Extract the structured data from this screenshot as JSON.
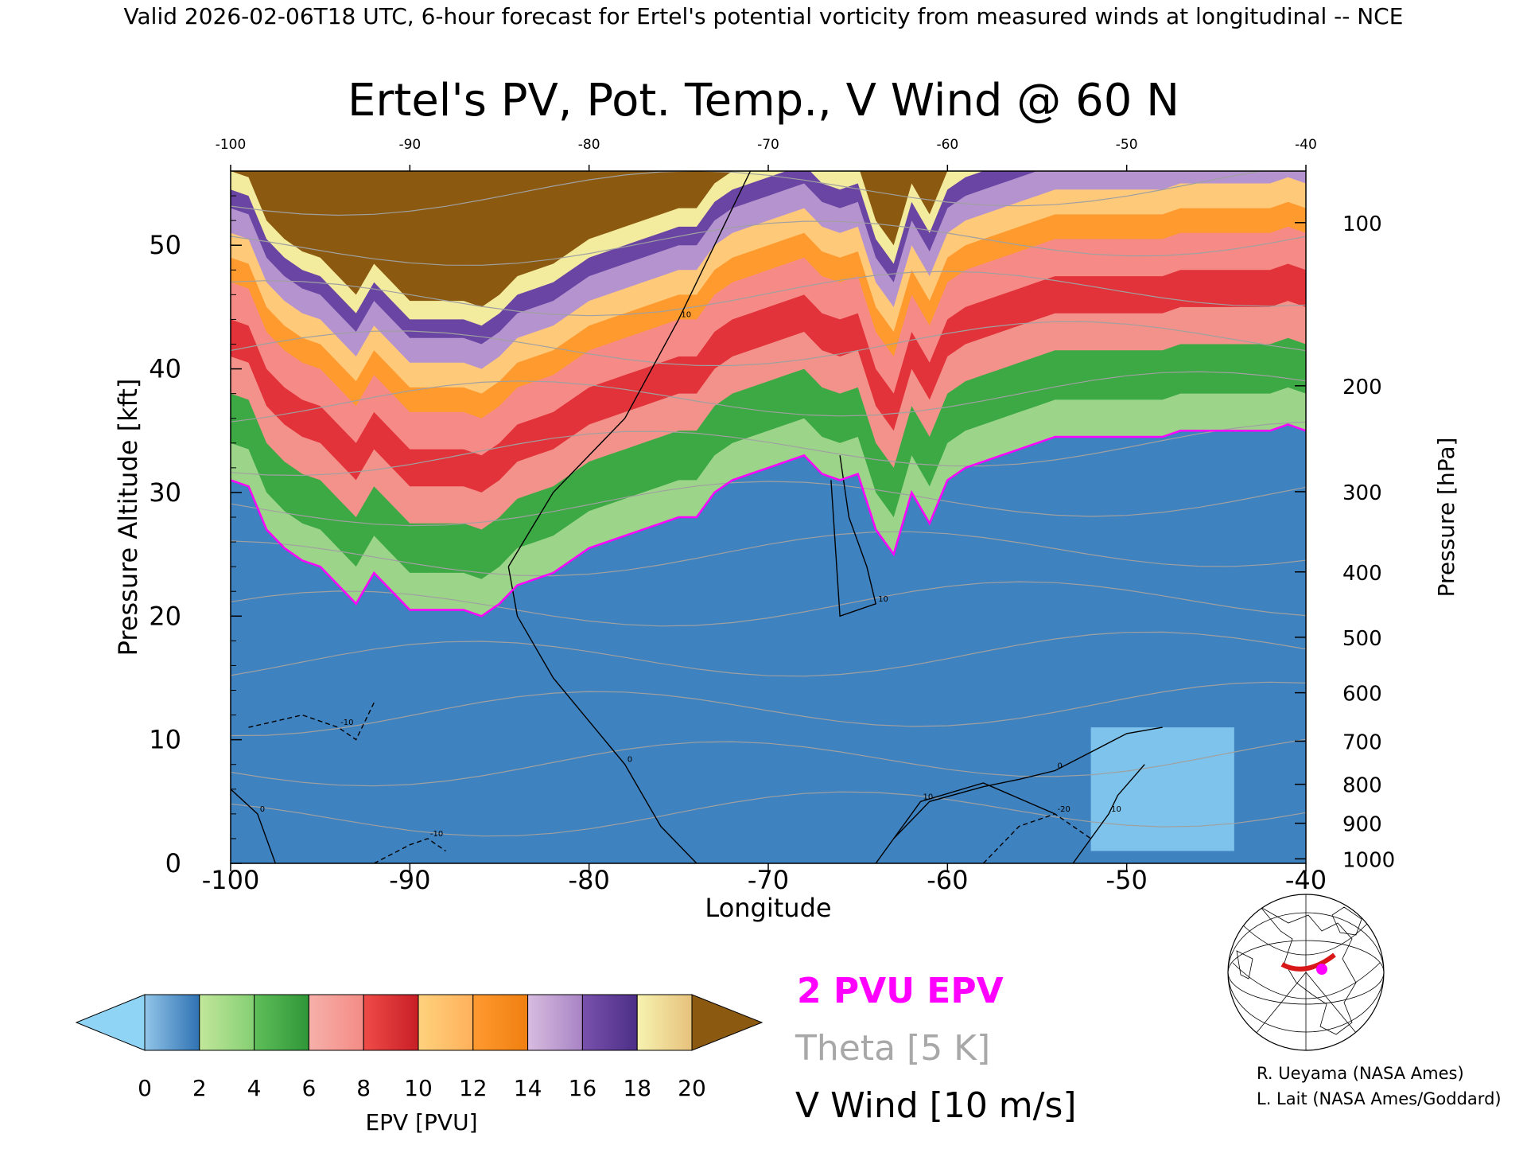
{
  "header": "Valid 2026-02-06T18 UTC, 6-hour forecast for Ertel's potential vorticity from measured winds at longitudinal -- NCE",
  "chart_data": {
    "type": "heatmap",
    "title": "Ertel's PV, Pot. Temp., V Wind @ 60 N",
    "xlabel": "Longitude",
    "ylabel": "Pressure Altitude [kft]",
    "y2label": "Pressure [hPa]",
    "xlim": [
      -100,
      -40
    ],
    "ylim": [
      0,
      56
    ],
    "x_ticks": [
      -100,
      -90,
      -80,
      -70,
      -60,
      -50,
      -40
    ],
    "y_ticks": [
      0,
      10,
      20,
      30,
      40,
      50
    ],
    "pressure_ticks": [
      100,
      200,
      300,
      400,
      500,
      600,
      700,
      800,
      900,
      1000
    ],
    "grid": false,
    "field": "EPV [PVU]",
    "tropopause_2pvu": {
      "x": [
        -100,
        -99,
        -98,
        -97,
        -96,
        -95,
        -94,
        -93,
        -92,
        -91,
        -90,
        -89,
        -88,
        -87,
        -86,
        -85,
        -84,
        -83,
        -82,
        -81,
        -80,
        -79,
        -78,
        -77,
        -76,
        -75,
        -74,
        -73,
        -72,
        -71,
        -70,
        -69,
        -68,
        -67,
        -66,
        -65,
        -64,
        -63,
        -62,
        -61,
        -60,
        -59,
        -58,
        -57,
        -56,
        -55,
        -54,
        -53,
        -52,
        -51,
        -50,
        -49,
        -48,
        -47,
        -46,
        -45,
        -44,
        -43,
        -42,
        -41,
        -40
      ],
      "y": [
        31,
        30.5,
        27,
        25.5,
        24.5,
        24,
        22.5,
        21,
        23.5,
        22,
        20.5,
        20.5,
        20.5,
        20.5,
        20,
        21,
        22.5,
        23,
        23.5,
        24.5,
        25.5,
        26,
        26.5,
        27,
        27.5,
        28,
        28,
        30,
        31,
        31.5,
        32,
        32.5,
        33,
        31.5,
        31,
        31.5,
        27,
        25,
        30,
        27.5,
        31,
        32,
        32.5,
        33,
        33.5,
        34,
        34.5,
        34.5,
        34.5,
        34.5,
        34.5,
        34.5,
        34.5,
        35,
        35,
        35,
        35,
        35,
        35,
        35.5,
        35
      ]
    },
    "v_wind_contours": [
      {
        "label": "0",
        "x": [
          -100,
          -98.5,
          -97.5
        ],
        "y": [
          6,
          4,
          0
        ]
      },
      {
        "label": "0",
        "x": [
          -84.5,
          -84,
          -82,
          -78,
          -76,
          -74
        ],
        "y": [
          24,
          20,
          15,
          8,
          3,
          0
        ]
      },
      {
        "label": "10",
        "x": [
          -84.5,
          -82,
          -78,
          -75,
          -73,
          -72,
          -71
        ],
        "y": [
          24,
          30,
          36,
          44,
          50,
          53,
          56
        ]
      },
      {
        "label": "10",
        "x": [
          -64,
          -63,
          -61.5,
          -58,
          -54
        ],
        "y": [
          0,
          2,
          5,
          6.5,
          4
        ]
      },
      {
        "label": "0",
        "x": [
          -63,
          -61,
          -58,
          -56,
          -54,
          -52,
          -50,
          -48
        ],
        "y": [
          2,
          5,
          6.2,
          6.8,
          7.5,
          9,
          10.5,
          11
        ]
      },
      {
        "label": "10",
        "x": [
          -66,
          -65.5,
          -64.5,
          -64,
          -66,
          -66.5
        ],
        "y": [
          33,
          28,
          24,
          21,
          20,
          31
        ]
      },
      {
        "label": "10",
        "x": [
          -53,
          -52,
          -51,
          -50.5,
          -49
        ],
        "y": [
          0,
          2,
          4,
          5.5,
          8
        ]
      },
      {
        "label": "-10",
        "x": [
          -99,
          -96,
          -94,
          -93,
          -92
        ],
        "y": [
          11,
          12,
          11,
          10,
          13
        ]
      },
      {
        "label": "-10",
        "x": [
          -92,
          -90,
          -89,
          -88
        ],
        "y": [
          0,
          1.5,
          2,
          1
        ]
      },
      {
        "label": "-20",
        "x": [
          -58,
          -56,
          -54,
          -52
        ],
        "y": [
          0,
          3,
          4,
          2
        ]
      }
    ],
    "theta_contours": [
      290,
      300,
      310,
      320,
      330,
      340,
      350,
      360,
      370,
      380,
      390,
      400,
      410,
      420
    ],
    "inset_map_label": "2 PVU EPV",
    "legend": [
      {
        "label": "2 PVU EPV",
        "color": "#ff00ff"
      },
      {
        "label": "Theta [5 K]",
        "color": "#a8a8a8"
      },
      {
        "label": "V Wind [10 m/s]",
        "color": "#000000"
      }
    ],
    "colorbar": {
      "label": "EPV [PVU]",
      "tick_labels": [
        "0",
        "2",
        "4",
        "6",
        "8",
        "10",
        "12",
        "14",
        "16",
        "18",
        "20"
      ],
      "bands": [
        [
          "#92c5e8",
          "#2f72b3"
        ],
        [
          "#c2e79b",
          "#85cf73"
        ],
        [
          "#5fbf5a",
          "#2f9638"
        ],
        [
          "#f7b0aa",
          "#f48b85"
        ],
        [
          "#ef4c48",
          "#c81e26"
        ],
        [
          "#ffd27d",
          "#ffb05a"
        ],
        [
          "#ff9a30",
          "#f07f10"
        ],
        [
          "#d8bce0",
          "#a884c4"
        ],
        [
          "#7951ac",
          "#4c2f87"
        ],
        [
          "#f7f2b0",
          "#e6c27c"
        ]
      ],
      "under_color": "#8fd3f5",
      "over_color": "#8b5a10"
    }
  },
  "credits": [
    "R. Ueyama (NASA Ames)",
    "L. Lait (NASA Ames/Goddard)"
  ]
}
